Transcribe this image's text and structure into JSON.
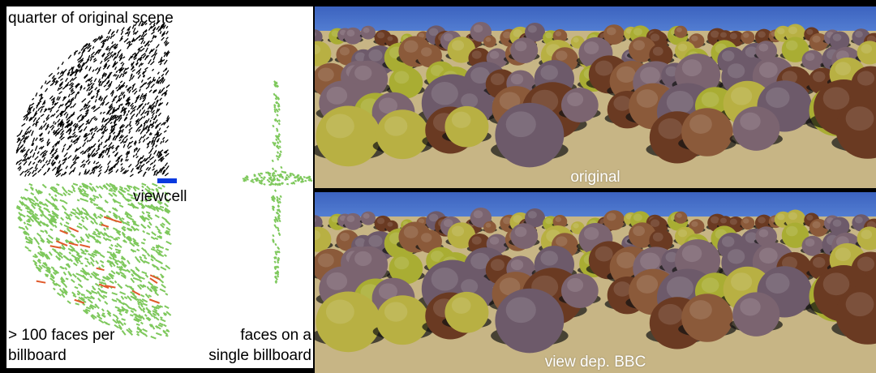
{
  "figure": {
    "labels": {
      "quarter": "quarter  of original scene",
      "viewcell": "viewcell",
      "many_faces_line1": "> 100 faces per",
      "many_faces_line2": "billboard",
      "single_line1": "faces on a",
      "single_line2": "single billboard"
    },
    "captions": {
      "original": "original",
      "bbc": "view dep. BBC"
    },
    "colors": {
      "scene_faces": "#000000",
      "billboard_faces": "#7ec85c",
      "highlight_faces": "#e0592a",
      "viewcell": "#0a3adf",
      "sky": "#5a86d8",
      "ground": "#c7b585",
      "tree_brown": "#6a3a22",
      "tree_yellow": "#a9ad33",
      "tree_purple": "#6d5a6a"
    }
  }
}
